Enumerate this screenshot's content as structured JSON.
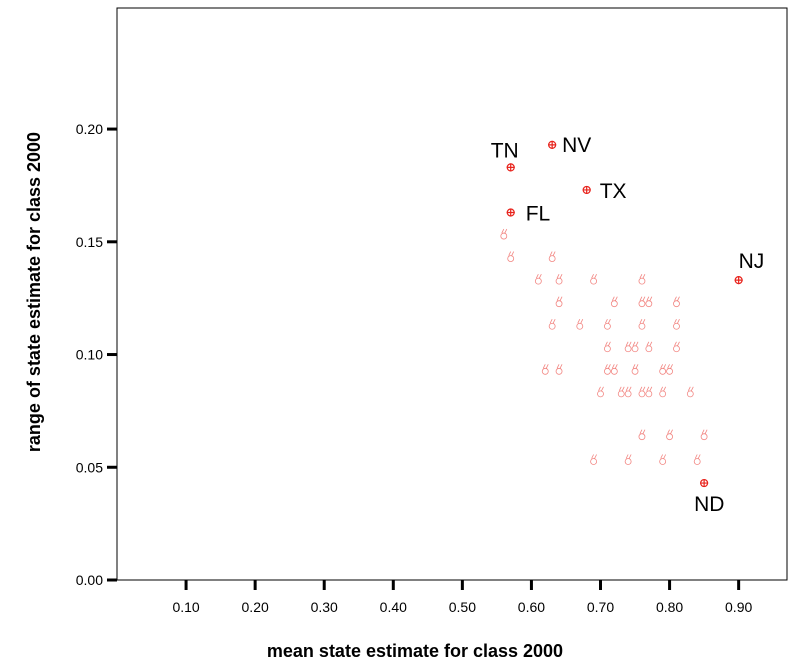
{
  "chart_data": {
    "type": "scatter",
    "title": "",
    "xlabel": "mean state estimate for class 2000",
    "ylabel": "range of state estimate for class 2000",
    "xlim": [
      0.0,
      0.97
    ],
    "ylim": [
      0.0,
      0.2537
    ],
    "x_ticks": [
      "0.10",
      "0.20",
      "0.30",
      "0.40",
      "0.50",
      "0.60",
      "0.70",
      "0.80",
      "0.90"
    ],
    "y_ticks": [
      "0.00",
      "0.05",
      "0.10",
      "0.15",
      "0.20"
    ],
    "marker_color": "#e8231c",
    "labeled_points": [
      {
        "label": "TN",
        "x": 0.57,
        "y": 0.183
      },
      {
        "label": "NV",
        "x": 0.63,
        "y": 0.193
      },
      {
        "label": "TX",
        "x": 0.68,
        "y": 0.173
      },
      {
        "label": "FL",
        "x": 0.57,
        "y": 0.163
      },
      {
        "label": "NJ",
        "x": 0.9,
        "y": 0.133
      },
      {
        "label": "ND",
        "x": 0.85,
        "y": 0.043
      }
    ],
    "points": [
      {
        "x": 0.56,
        "y": 0.153
      },
      {
        "x": 0.57,
        "y": 0.143
      },
      {
        "x": 0.63,
        "y": 0.143
      },
      {
        "x": 0.61,
        "y": 0.133
      },
      {
        "x": 0.64,
        "y": 0.133
      },
      {
        "x": 0.69,
        "y": 0.133
      },
      {
        "x": 0.76,
        "y": 0.133
      },
      {
        "x": 0.64,
        "y": 0.123
      },
      {
        "x": 0.72,
        "y": 0.123
      },
      {
        "x": 0.76,
        "y": 0.123
      },
      {
        "x": 0.77,
        "y": 0.123
      },
      {
        "x": 0.81,
        "y": 0.123
      },
      {
        "x": 0.63,
        "y": 0.113
      },
      {
        "x": 0.67,
        "y": 0.113
      },
      {
        "x": 0.71,
        "y": 0.113
      },
      {
        "x": 0.76,
        "y": 0.113
      },
      {
        "x": 0.81,
        "y": 0.113
      },
      {
        "x": 0.71,
        "y": 0.103
      },
      {
        "x": 0.74,
        "y": 0.103
      },
      {
        "x": 0.75,
        "y": 0.103
      },
      {
        "x": 0.77,
        "y": 0.103
      },
      {
        "x": 0.81,
        "y": 0.103
      },
      {
        "x": 0.62,
        "y": 0.093
      },
      {
        "x": 0.64,
        "y": 0.093
      },
      {
        "x": 0.71,
        "y": 0.093
      },
      {
        "x": 0.72,
        "y": 0.093
      },
      {
        "x": 0.75,
        "y": 0.093
      },
      {
        "x": 0.79,
        "y": 0.093
      },
      {
        "x": 0.8,
        "y": 0.093
      },
      {
        "x": 0.7,
        "y": 0.083
      },
      {
        "x": 0.73,
        "y": 0.083
      },
      {
        "x": 0.74,
        "y": 0.083
      },
      {
        "x": 0.76,
        "y": 0.083
      },
      {
        "x": 0.77,
        "y": 0.083
      },
      {
        "x": 0.79,
        "y": 0.083
      },
      {
        "x": 0.83,
        "y": 0.083
      },
      {
        "x": 0.76,
        "y": 0.064
      },
      {
        "x": 0.8,
        "y": 0.064
      },
      {
        "x": 0.85,
        "y": 0.064
      },
      {
        "x": 0.69,
        "y": 0.053
      },
      {
        "x": 0.74,
        "y": 0.053
      },
      {
        "x": 0.79,
        "y": 0.053
      },
      {
        "x": 0.84,
        "y": 0.053
      }
    ]
  }
}
